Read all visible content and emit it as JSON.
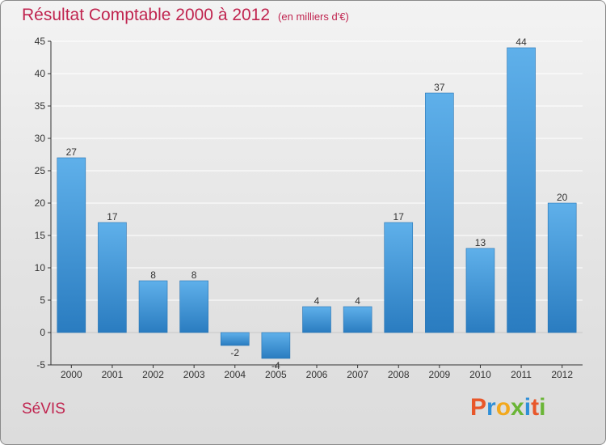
{
  "header": {
    "title": "Résultat Comptable 2000 à 2012",
    "subtitle": "(en milliers d'€)"
  },
  "footer": {
    "commune": "SéVIS",
    "brand_letters": [
      "P",
      "r",
      "o",
      "x",
      "i",
      "t",
      "i"
    ],
    "brand_colors": [
      "#e8572a",
      "#2f8fd8",
      "#f2a81d",
      "#6ab536",
      "#2f8fd8",
      "#e8572a",
      "#6ab536"
    ]
  },
  "colors": {
    "bar_light": "#5fb0ea",
    "bar_dark": "#2a7cc0",
    "title": "#c0244f",
    "axis": "#333333",
    "grid": "#ffffff"
  },
  "chart_data": {
    "type": "bar",
    "title": "Résultat Comptable 2000 à 2012",
    "subtitle": "(en milliers d'€)",
    "xlabel": "",
    "ylabel": "",
    "categories": [
      "2000",
      "2001",
      "2002",
      "2003",
      "2004",
      "2005",
      "2006",
      "2007",
      "2008",
      "2009",
      "2010",
      "2011",
      "2012"
    ],
    "values": [
      27,
      17,
      8,
      8,
      -2,
      -4,
      4,
      4,
      17,
      37,
      13,
      44,
      20
    ],
    "ylim": [
      -5,
      45
    ],
    "yticks": [
      -5,
      0,
      5,
      10,
      15,
      20,
      25,
      30,
      35,
      40,
      45
    ],
    "grid": true,
    "legend": "none"
  }
}
